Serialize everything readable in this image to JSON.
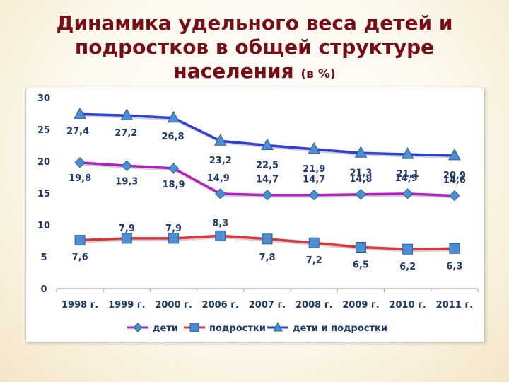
{
  "title": {
    "line1": "Динамика удельного веса детей и",
    "line2": "подростков в общей структуре",
    "line3": "населения",
    "unit": "(в %)"
  },
  "chart_data": {
    "type": "line",
    "categories": [
      "1998 г.",
      "1999 г.",
      "2000 г.",
      "2006 г.",
      "2007 г.",
      "2008 г.",
      "2009 г.",
      "2010 г.",
      "2011 г."
    ],
    "ylim": [
      0,
      30
    ],
    "yticks": [
      0,
      5,
      10,
      15,
      20,
      25,
      30
    ],
    "grid": false,
    "legend_position": "bottom",
    "series": [
      {
        "name": "дети",
        "marker": "diamond",
        "color": "#b21fc0",
        "values": [
          19.8,
          19.3,
          18.9,
          14.9,
          14.7,
          14.7,
          14.8,
          14.9,
          14.6
        ],
        "labels": [
          "19,8",
          "19,3",
          "18,9",
          "14,9",
          "14,7",
          "14,7",
          "14,8",
          "14,9",
          "14,6"
        ]
      },
      {
        "name": "подростки",
        "marker": "square",
        "color": "#e0343d",
        "values": [
          7.6,
          7.9,
          7.9,
          8.3,
          7.8,
          7.2,
          6.5,
          6.2,
          6.3
        ],
        "labels": [
          "7,6",
          "7,9",
          "7,9",
          "8,3",
          "7,8",
          "7,2",
          "6,5",
          "6,2",
          "6,3"
        ]
      },
      {
        "name": "дети и подростки",
        "marker": "triangle",
        "color": "#2f3fd6",
        "values": [
          27.4,
          27.2,
          26.8,
          23.2,
          22.5,
          21.9,
          21.3,
          21.1,
          20.9
        ],
        "labels": [
          "27,4",
          "27,2",
          "26,8",
          "23,2",
          "22,5",
          "21,9",
          "21,3",
          "21,1",
          "20,9"
        ]
      }
    ]
  }
}
